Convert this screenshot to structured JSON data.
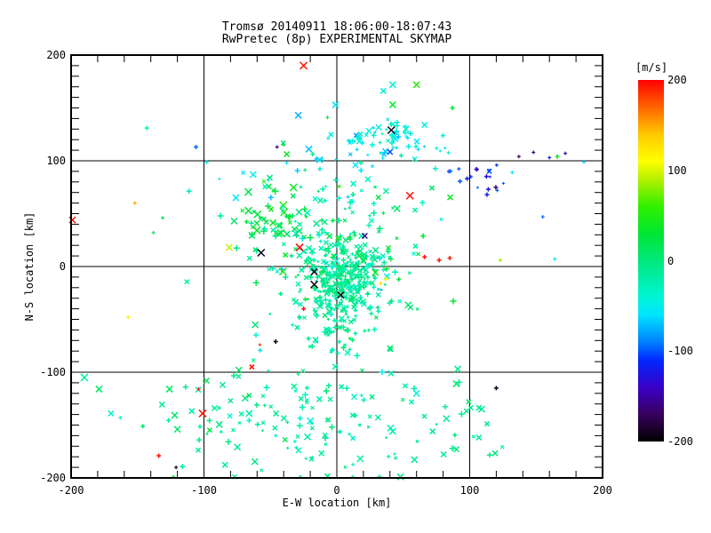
{
  "title": {
    "line1": "Tromsø 20140911 18:06:00-18:07:43",
    "line2": "RwPretec (8p) EXPERIMENTAL SKYMAP"
  },
  "axes": {
    "x": {
      "label": "E-W location [km]",
      "range": [
        -200,
        200
      ],
      "ticks": [
        -200,
        -100,
        0,
        100,
        200
      ],
      "minor_step": 20,
      "grid": true
    },
    "y": {
      "label": "N-S location [km]",
      "range": [
        -200,
        200
      ],
      "ticks": [
        200,
        100,
        0,
        -100,
        -200
      ],
      "minor_step": 10,
      "grid": true
    }
  },
  "colorbar": {
    "title": "[m/s]",
    "range": [
      -200,
      200
    ],
    "ticks": [
      200,
      100,
      0,
      -100,
      -200
    ],
    "stops": [
      [
        -200,
        "#000000"
      ],
      [
        -170,
        "#38005c"
      ],
      [
        -140,
        "#3a00c8"
      ],
      [
        -110,
        "#0028ff"
      ],
      [
        -90,
        "#0080ff"
      ],
      [
        -60,
        "#00e4ff"
      ],
      [
        -40,
        "#00f5d4"
      ],
      [
        0,
        "#00e87c"
      ],
      [
        30,
        "#00e632"
      ],
      [
        60,
        "#30f000"
      ],
      [
        90,
        "#b4f000"
      ],
      [
        110,
        "#ffff00"
      ],
      [
        140,
        "#ffc800"
      ],
      [
        170,
        "#ff6400"
      ],
      [
        200,
        "#ff0000"
      ]
    ]
  },
  "chart_data": {
    "type": "scatter",
    "title": "Tromsø 20140911 18:06:00-18:07:43 / RwPretec (8p) EXPERIMENTAL SKYMAP",
    "xlabel": "E-W location [km]",
    "ylabel": "N-S location [km]",
    "xlim": [
      -200,
      200
    ],
    "ylim": [
      -200,
      200
    ],
    "color_value_label": "[m/s]",
    "color_value_range": [
      -200,
      200
    ],
    "legend_position": "right-colorbar",
    "grid": true,
    "point_format": "[x_km, y_km, velocity_ms, marker(0=plus,1=cross), size_px]",
    "points": [
      [
        -199,
        44,
        195,
        1,
        7
      ],
      [
        -25,
        190,
        195,
        1,
        8
      ],
      [
        -28,
        18,
        200,
        1,
        8
      ],
      [
        55,
        67,
        195,
        1,
        8
      ],
      [
        -101,
        -139,
        195,
        1,
        8
      ],
      [
        -104,
        -116,
        190,
        0,
        4
      ],
      [
        -134,
        -179,
        195,
        0,
        5
      ],
      [
        66,
        9,
        195,
        0,
        5
      ],
      [
        77,
        6,
        195,
        0,
        5
      ],
      [
        85,
        8,
        190,
        0,
        5
      ],
      [
        -25,
        -40,
        195,
        0,
        5
      ],
      [
        -58,
        -74,
        190,
        0,
        3
      ],
      [
        -64,
        -95,
        195,
        1,
        5
      ],
      [
        41,
        129,
        -195,
        1,
        8
      ],
      [
        -57,
        13,
        -195,
        1,
        8
      ],
      [
        -17,
        -5,
        -190,
        1,
        7
      ],
      [
        -17,
        -17,
        -195,
        1,
        8
      ],
      [
        3,
        -27,
        -190,
        1,
        7
      ],
      [
        -46,
        -71,
        -195,
        0,
        5
      ],
      [
        120,
        -115,
        -190,
        0,
        5
      ],
      [
        -121,
        -190,
        -185,
        0,
        4
      ],
      [
        21,
        29,
        -160,
        1,
        6
      ],
      [
        -45,
        113,
        -165,
        0,
        4
      ],
      [
        105,
        92,
        -140,
        0,
        5
      ],
      [
        137,
        104,
        -170,
        0,
        4
      ],
      [
        148,
        108,
        -155,
        0,
        4
      ],
      [
        160,
        103,
        -120,
        0,
        4
      ],
      [
        172,
        107,
        -145,
        0,
        4
      ],
      [
        186,
        99,
        -65,
        0,
        4
      ],
      [
        155,
        47,
        -95,
        0,
        4
      ],
      [
        132,
        89,
        -60,
        0,
        4
      ],
      [
        166,
        104,
        35,
        0,
        5
      ],
      [
        -106,
        113,
        -95,
        0,
        5
      ],
      [
        114,
        73,
        -125,
        0,
        5
      ],
      [
        113,
        68,
        -120,
        0,
        5
      ],
      [
        37,
        -12,
        115,
        0,
        5
      ],
      [
        -81,
        18,
        95,
        1,
        7
      ],
      [
        123,
        6,
        85,
        0,
        4
      ],
      [
        33,
        -16,
        130,
        0,
        4
      ],
      [
        -157,
        -48,
        120,
        0,
        4
      ],
      [
        -152,
        60,
        150,
        0,
        4
      ],
      [
        -143,
        131,
        -30,
        0,
        5
      ],
      [
        -76,
        65,
        -55,
        1,
        7
      ],
      [
        -63,
        87,
        -45,
        1,
        7
      ],
      [
        164,
        7,
        -55,
        0,
        4
      ],
      [
        -29,
        143,
        -75,
        1,
        7
      ],
      [
        -1,
        153,
        -60,
        1,
        7
      ],
      [
        -21,
        111,
        -70,
        1,
        7
      ],
      [
        -13,
        101,
        -65,
        1,
        7
      ],
      [
        14,
        96,
        -60,
        1,
        6
      ],
      [
        -46,
        -160,
        -40,
        0,
        4
      ],
      [
        -170,
        -139,
        -35,
        1,
        6
      ],
      [
        -163,
        -143,
        -30,
        0,
        4
      ],
      [
        60,
        -120,
        -45,
        1,
        7
      ],
      [
        -66,
        -139,
        -20,
        1,
        7
      ],
      [
        60,
        172,
        55,
        1,
        7
      ],
      [
        42,
        172,
        -40,
        1,
        7
      ],
      [
        35,
        166,
        -45,
        1,
        6
      ],
      [
        42,
        153,
        35,
        1,
        7
      ],
      [
        87,
        150,
        30,
        0,
        5
      ],
      [
        -7,
        141,
        25,
        0,
        4
      ],
      [
        -40,
        115,
        20,
        0,
        4
      ],
      [
        52,
        130,
        -35,
        1,
        7
      ],
      [
        66,
        134,
        -45,
        1,
        6
      ],
      [
        -131,
        46,
        20,
        0,
        4
      ],
      [
        -138,
        32,
        15,
        0,
        4
      ],
      [
        -126,
        -116,
        10,
        1,
        7
      ],
      [
        -120,
        -154,
        5,
        1,
        7
      ],
      [
        -146,
        -151,
        10,
        0,
        5
      ],
      [
        -123,
        -199,
        20,
        0,
        4
      ],
      [
        -190,
        -105,
        -20,
        1,
        8
      ],
      [
        -179,
        -116,
        10,
        1,
        7
      ],
      [
        -98,
        -108,
        15,
        1,
        6
      ],
      [
        -86,
        -112,
        -10,
        1,
        6
      ],
      [
        -74,
        -104,
        -15,
        1,
        5
      ],
      [
        -92,
        -134,
        -20,
        1,
        6
      ],
      [
        -80,
        -127,
        -5,
        1,
        5
      ],
      [
        -66,
        -122,
        10,
        1,
        5
      ],
      [
        91,
        -97,
        -5,
        1,
        7
      ],
      [
        90,
        -111,
        0,
        1,
        7
      ],
      [
        109,
        -135,
        -10,
        1,
        7
      ]
    ],
    "cluster_format": "density summaries of unresolvable dense regions: {seed,n,cx,cy,sx,sy,v,vs,xfrac,smin,smax}",
    "clusters": [
      {
        "seed": 11,
        "n": 320,
        "cx": 4,
        "cy": -8,
        "sx": 14,
        "sy": 20,
        "v": -14,
        "vs": 14,
        "xfrac": 0.4,
        "smin": 3,
        "smax": 6
      },
      {
        "seed": 22,
        "n": 140,
        "cx": 0,
        "cy": 6,
        "sx": 36,
        "sy": 42,
        "v": -8,
        "vs": 22,
        "xfrac": 0.45,
        "smin": 3,
        "smax": 7
      },
      {
        "seed": 33,
        "n": 55,
        "cx": -50,
        "cy": 48,
        "sx": 15,
        "sy": 20,
        "v": 18,
        "vs": 18,
        "xfrac": 0.7,
        "smin": 4,
        "smax": 8
      },
      {
        "seed": 44,
        "n": 70,
        "cx": 36,
        "cy": 120,
        "sx": 17,
        "sy": 12,
        "v": -48,
        "vs": 12,
        "xfrac": 0.3,
        "smin": 3,
        "smax": 6
      },
      {
        "seed": 55,
        "n": 16,
        "cx": 100,
        "cy": 85,
        "sx": 20,
        "sy": 13,
        "v": -115,
        "vs": 20,
        "xfrac": 0.1,
        "smin": 3,
        "smax": 5
      },
      {
        "seed": 66,
        "n": 115,
        "cx": -12,
        "cy": -148,
        "sx": 52,
        "sy": 27,
        "v": -16,
        "vs": 13,
        "xfrac": 0.55,
        "smin": 3,
        "smax": 7
      },
      {
        "seed": 77,
        "n": 8,
        "cx": -108,
        "cy": -132,
        "sx": 26,
        "sy": 22,
        "v": -5,
        "vs": 12,
        "xfrac": 0.7,
        "smin": 5,
        "smax": 7
      },
      {
        "seed": 88,
        "n": 18,
        "cx": 84,
        "cy": -142,
        "sx": 16,
        "sy": 20,
        "v": -10,
        "vs": 10,
        "xfrac": 0.7,
        "smin": 5,
        "smax": 7
      },
      {
        "seed": 99,
        "n": 40,
        "cx": 8,
        "cy": 82,
        "sx": 40,
        "sy": 22,
        "v": -35,
        "vs": 25,
        "xfrac": 0.4,
        "smin": 3,
        "smax": 6
      },
      {
        "seed": 12,
        "n": 45,
        "cx": 0,
        "cy": -55,
        "sx": 16,
        "sy": 18,
        "v": -15,
        "vs": 12,
        "xfrac": 0.5,
        "smin": 3,
        "smax": 6
      }
    ]
  }
}
